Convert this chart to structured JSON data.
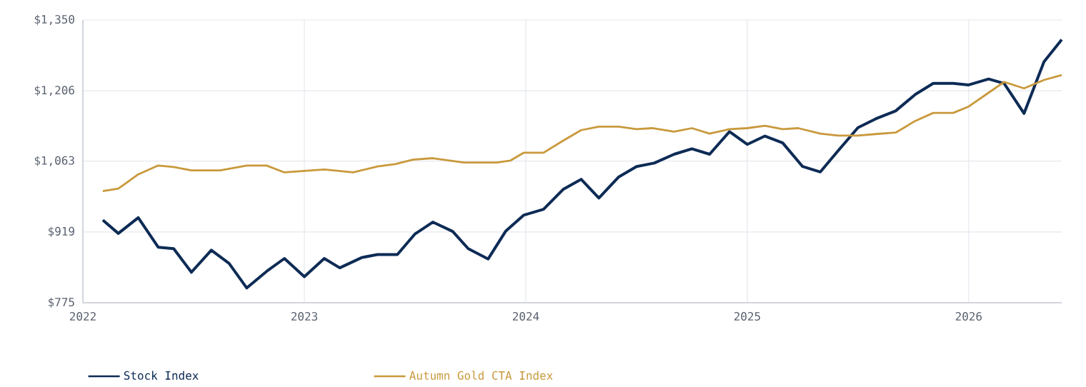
{
  "chart_data": {
    "type": "line",
    "xlim": [
      2022,
      2026.42
    ],
    "xticks": [
      2022,
      2023,
      2024,
      2025,
      2026
    ],
    "ylim": [
      775,
      1350
    ],
    "yticks": [
      {
        "value": 775,
        "label": "$775"
      },
      {
        "value": 919,
        "label": "$919"
      },
      {
        "value": 1063,
        "label": "$1,063"
      },
      {
        "value": 1206,
        "label": "$1,206"
      },
      {
        "value": 1350,
        "label": "$1,350"
      }
    ],
    "grid": true,
    "legend": "bottom",
    "marker": "none",
    "line_style": "solid",
    "series": [
      {
        "name": "Stock Index",
        "color": "#0d2b55",
        "x": [
          2022.09,
          2022.16,
          2022.25,
          2022.34,
          2022.41,
          2022.49,
          2022.58,
          2022.66,
          2022.74,
          2022.83,
          2022.91,
          2023.0,
          2023.09,
          2023.16,
          2023.26,
          2023.33,
          2023.42,
          2023.5,
          2023.58,
          2023.67,
          2023.74,
          2023.83,
          2023.91,
          2023.99,
          2024.08,
          2024.17,
          2024.25,
          2024.33,
          2024.42,
          2024.5,
          2024.58,
          2024.67,
          2024.75,
          2024.83,
          2024.92,
          2025.0,
          2025.08,
          2025.16,
          2025.25,
          2025.33,
          2025.41,
          2025.5,
          2025.58,
          2025.67,
          2025.76,
          2025.84,
          2025.93,
          2026.0,
          2026.09,
          2026.16,
          2026.25,
          2026.34,
          2026.42
        ],
        "values": [
          943,
          916,
          948,
          888,
          885,
          837,
          882,
          855,
          805,
          839,
          865,
          828,
          865,
          846,
          867,
          873,
          873,
          915,
          939,
          920,
          885,
          864,
          921,
          953,
          965,
          1006,
          1026,
          988,
          1031,
          1052,
          1059,
          1077,
          1088,
          1077,
          1123,
          1097,
          1114,
          1100,
          1052,
          1041,
          1084,
          1131,
          1149,
          1165,
          1199,
          1221,
          1221,
          1218,
          1230,
          1221,
          1160,
          1265,
          1310
        ]
      },
      {
        "name": "Autumn Gold CTA Index",
        "color": "#c9993c",
        "x": [
          2022.09,
          2022.16,
          2022.25,
          2022.34,
          2022.41,
          2022.49,
          2022.62,
          2022.74,
          2022.83,
          2022.91,
          2023.0,
          2023.09,
          2023.22,
          2023.33,
          2023.41,
          2023.49,
          2023.58,
          2023.72,
          2023.87,
          2023.93,
          2023.99,
          2024.08,
          2024.17,
          2024.25,
          2024.33,
          2024.42,
          2024.5,
          2024.57,
          2024.67,
          2024.75,
          2024.83,
          2024.92,
          2025.0,
          2025.08,
          2025.16,
          2025.23,
          2025.33,
          2025.41,
          2025.5,
          2025.58,
          2025.67,
          2025.76,
          2025.84,
          2025.93,
          2026.0,
          2026.08,
          2026.16,
          2026.25,
          2026.34,
          2026.42
        ],
        "values": [
          1002,
          1007,
          1036,
          1054,
          1051,
          1044,
          1044,
          1054,
          1054,
          1040,
          1043,
          1046,
          1040,
          1052,
          1057,
          1066,
          1069,
          1060,
          1060,
          1064,
          1080,
          1080,
          1105,
          1126,
          1133,
          1133,
          1128,
          1130,
          1123,
          1130,
          1119,
          1128,
          1130,
          1135,
          1128,
          1130,
          1119,
          1115,
          1115,
          1118,
          1121,
          1145,
          1161,
          1161,
          1174,
          1199,
          1224,
          1211,
          1228,
          1238
        ]
      }
    ]
  }
}
